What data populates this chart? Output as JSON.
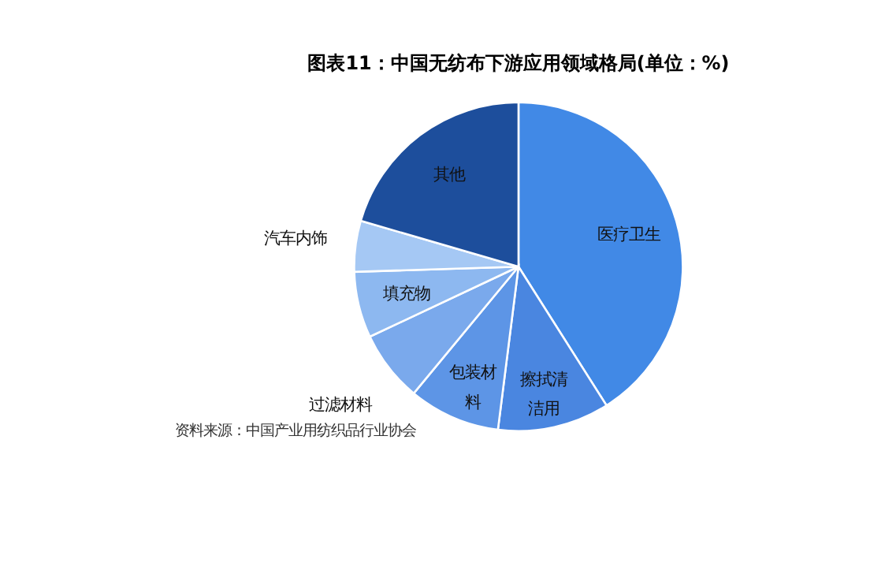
{
  "chart_data": {
    "type": "pie",
    "title": "图表11：中国无纺布下游应用领域格局(单位：%)",
    "categories": [
      "医疗卫生",
      "擦拭清洁用",
      "包装材料",
      "过滤材料",
      "填充物",
      "汽车内饰",
      "其他"
    ],
    "values": [
      41,
      11,
      9,
      7,
      6.5,
      5,
      20.5
    ],
    "colors": [
      "#4189e6",
      "#4a86e0",
      "#5d95e6",
      "#7aa9ec",
      "#8db8f0",
      "#a5c8f4",
      "#1d4e9c"
    ],
    "annotations": [
      "资料来源：中国产业用纺织品行业协会"
    ],
    "legend": false
  }
}
